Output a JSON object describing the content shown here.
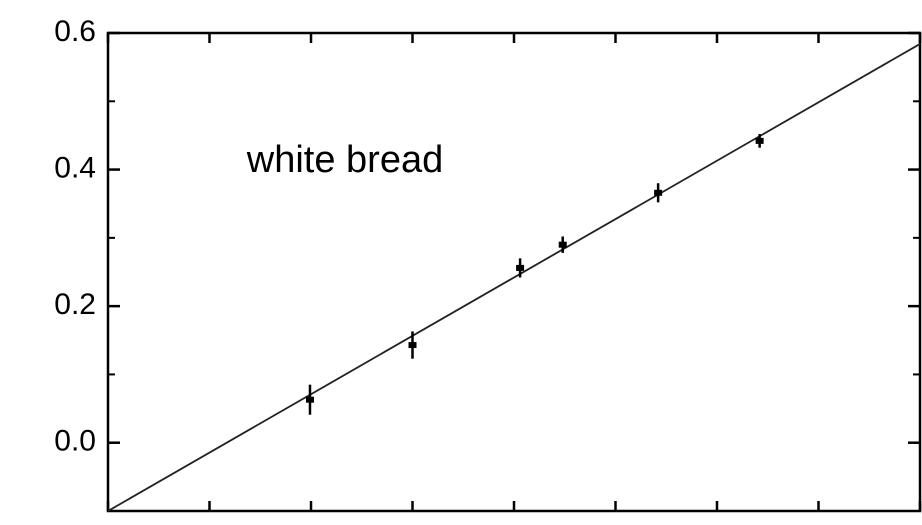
{
  "chart_data": {
    "type": "scatter",
    "annotation": "white bread",
    "xlim": [
      0,
      4
    ],
    "xticks": [
      0,
      0.5,
      1,
      1.5,
      2,
      2.5,
      3,
      3.5,
      4
    ],
    "ylim": [
      -0.1,
      0.6
    ],
    "yticks": [
      {
        "value": 0,
        "label": "0.0"
      },
      0.2,
      0.4,
      0.6
    ],
    "yminorticks": [
      -0.1,
      0.1,
      0.3,
      0.5
    ],
    "series": [
      {
        "color": "#000000",
        "x": [
          0.995,
          1.5,
          2.03,
          2.24,
          2.71,
          3.21
        ],
        "values": [
          0.063,
          0.143,
          0.256,
          0.29,
          0.366,
          0.442
        ],
        "errors": [
          0.022,
          0.02,
          0.014,
          0.012,
          0.014,
          0.01
        ]
      },
      {
        "color": "#222222",
        "x": [
          0,
          4
        ],
        "values": [
          -0.1,
          0.584
        ]
      }
    ]
  }
}
